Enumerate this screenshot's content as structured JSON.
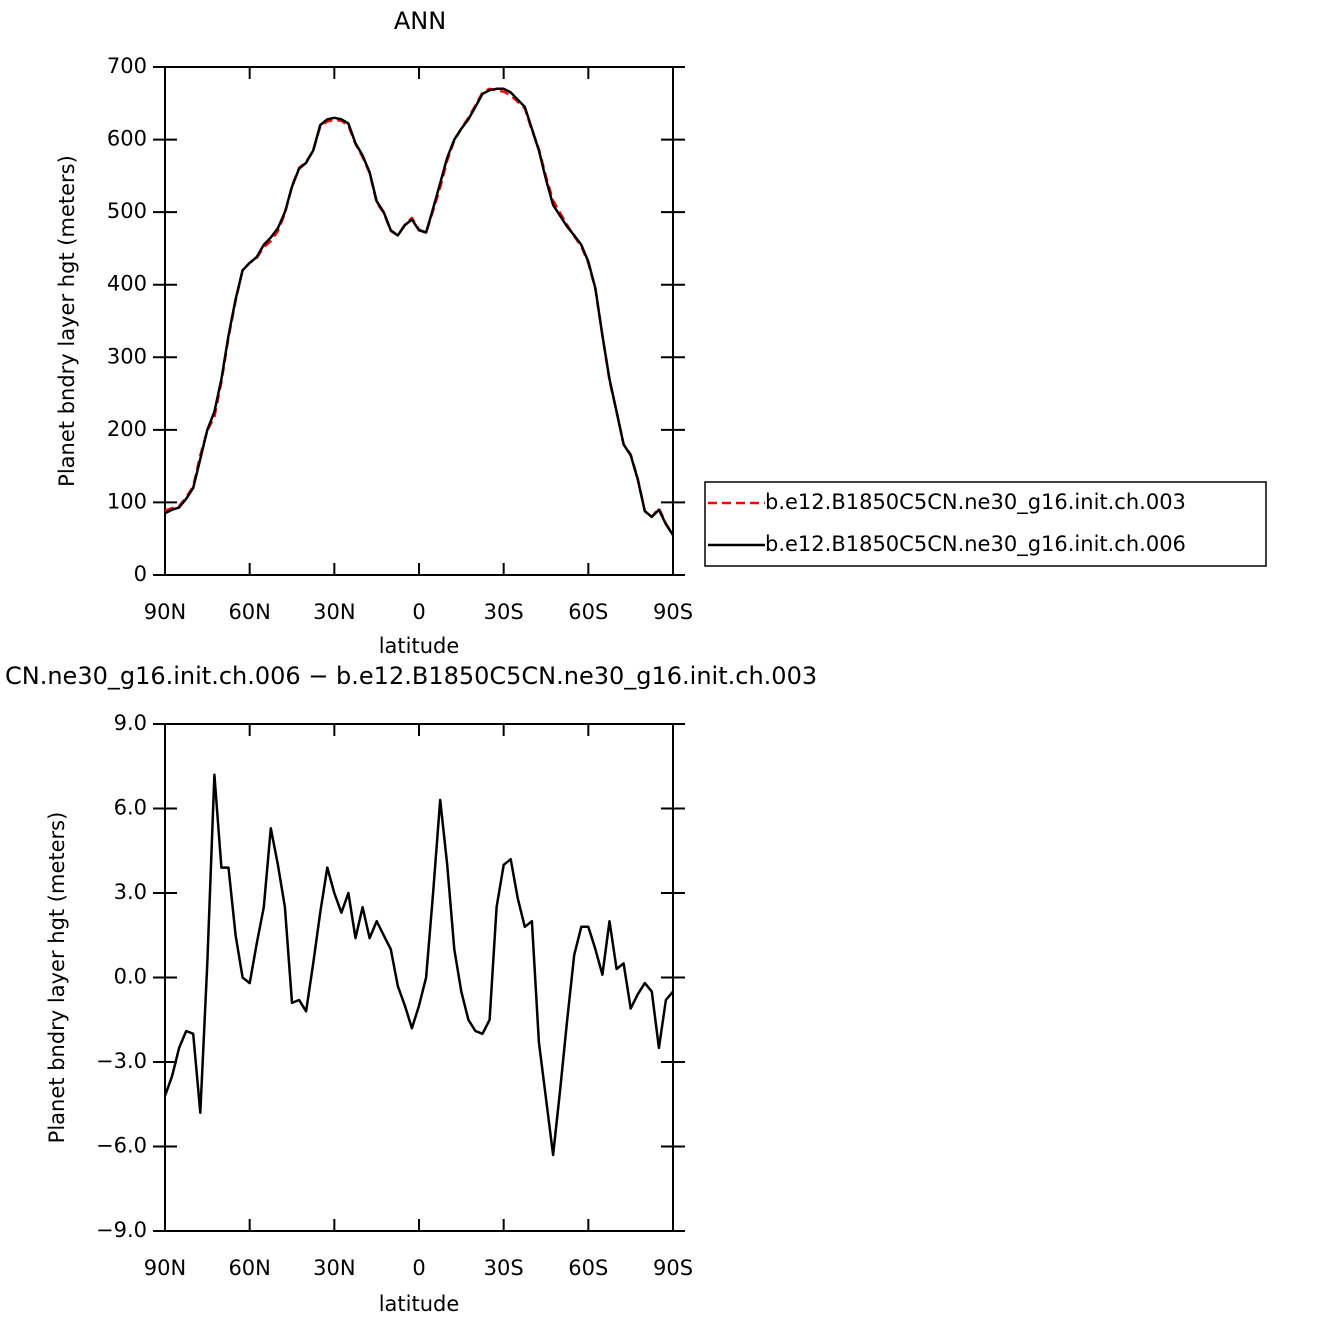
{
  "chart_data": [
    {
      "type": "line",
      "title": "ANN",
      "x_label": "latitude",
      "y_label": "Planet bndry layer hgt (meters)",
      "x": [
        90,
        87.5,
        85,
        82.5,
        80,
        77.5,
        75,
        72.5,
        70,
        67.5,
        65,
        62.5,
        60,
        57.5,
        55,
        52.5,
        50,
        47.5,
        45,
        42.5,
        40,
        37.5,
        35,
        32.5,
        30,
        27.5,
        25,
        22.5,
        20,
        17.5,
        15,
        12.5,
        10,
        7.5,
        5,
        2.5,
        0,
        -2.5,
        -5,
        -7.5,
        -10,
        -12.5,
        -15,
        -17.5,
        -20,
        -22.5,
        -25,
        -27.5,
        -30,
        -32.5,
        -35,
        -37.5,
        -40,
        -42.5,
        -45,
        -47.5,
        -50,
        -52.5,
        -55,
        -57.5,
        -60,
        -62.5,
        -65,
        -67.5,
        -70,
        -72.5,
        -75,
        -77.5,
        -80,
        -82.5,
        -85,
        -87.5,
        -90
      ],
      "xlim": [
        90,
        -90
      ],
      "xticks": [
        {
          "value": 90,
          "label": "90N"
        },
        {
          "value": 60,
          "label": "60N"
        },
        {
          "value": 30,
          "label": "30N"
        },
        0,
        {
          "value": -30,
          "label": "30S"
        },
        {
          "value": -60,
          "label": "60S"
        },
        {
          "value": -90,
          "label": "90S"
        }
      ],
      "ylim": [
        0,
        700
      ],
      "yticks": [
        0,
        100,
        200,
        300,
        400,
        500,
        600,
        700
      ],
      "legend": "right",
      "series": [
        {
          "name": "b.e12.B1850C5CN.ne30_g16.init.ch.003",
          "color": "#ff0000",
          "dash": true,
          "values": [
            89,
            92,
            95,
            107,
            122,
            165,
            199,
            218,
            266,
            327,
            378,
            420,
            430,
            437,
            452,
            460,
            474,
            498,
            536,
            561,
            569,
            585,
            618,
            625,
            627,
            626,
            619,
            594,
            576,
            554,
            513,
            499,
            474,
            468,
            483,
            492,
            476,
            472,
            502,
            534,
            571,
            599,
            615,
            630,
            647,
            665,
            670,
            668,
            666,
            661,
            652,
            643,
            613,
            587,
            549,
            516,
            499,
            482,
            467,
            453,
            430,
            394,
            330,
            268,
            225,
            180,
            166,
            133,
            88,
            80,
            92,
            71,
            55
          ]
        },
        {
          "name": "b.e12.B1850C5CN.ne30_g16.init.ch.006",
          "color": "#000000",
          "dash": false,
          "values": [
            85,
            90,
            93,
            105,
            120,
            160,
            200,
            225,
            270,
            330,
            380,
            420,
            430,
            438,
            455,
            465,
            478,
            500,
            535,
            560,
            568,
            585,
            620,
            628,
            630,
            628,
            622,
            595,
            578,
            555,
            515,
            500,
            475,
            468,
            482,
            490,
            475,
            472,
            505,
            540,
            575,
            600,
            615,
            628,
            645,
            663,
            668,
            670,
            670,
            665,
            655,
            645,
            615,
            585,
            545,
            510,
            495,
            480,
            468,
            455,
            432,
            395,
            330,
            270,
            225,
            180,
            165,
            132,
            88,
            80,
            90,
            70,
            55
          ]
        }
      ]
    },
    {
      "type": "line",
      "title": "CN.ne30_g16.init.ch.006 − b.e12.B1850C5CN.ne30_g16.init.ch.003",
      "x_label": "latitude",
      "y_label": "Planet bndry layer hgt (meters)",
      "x": [
        90,
        87.5,
        85,
        82.5,
        80,
        77.5,
        75,
        72.5,
        70,
        67.5,
        65,
        62.5,
        60,
        57.5,
        55,
        52.5,
        50,
        47.5,
        45,
        42.5,
        40,
        37.5,
        35,
        32.5,
        30,
        27.5,
        25,
        22.5,
        20,
        17.5,
        15,
        12.5,
        10,
        7.5,
        5,
        2.5,
        0,
        -2.5,
        -5,
        -7.5,
        -10,
        -12.5,
        -15,
        -17.5,
        -20,
        -22.5,
        -25,
        -27.5,
        -30,
        -32.5,
        -35,
        -37.5,
        -40,
        -42.5,
        -45,
        -47.5,
        -50,
        -52.5,
        -55,
        -57.5,
        -60,
        -62.5,
        -65,
        -67.5,
        -70,
        -72.5,
        -75,
        -77.5,
        -80,
        -82.5,
        -85,
        -87.5,
        -90
      ],
      "xlim": [
        90,
        -90
      ],
      "xticks": [
        {
          "value": 90,
          "label": "90N"
        },
        {
          "value": 60,
          "label": "60N"
        },
        {
          "value": 30,
          "label": "30N"
        },
        0,
        {
          "value": -30,
          "label": "30S"
        },
        {
          "value": -60,
          "label": "60S"
        },
        {
          "value": -90,
          "label": "90S"
        }
      ],
      "ylim": [
        -9,
        9
      ],
      "yticks": [
        {
          "value": -9,
          "label": "−9.0"
        },
        {
          "value": -6,
          "label": "−6.0"
        },
        {
          "value": -3,
          "label": "−3.0"
        },
        {
          "value": 0,
          "label": "0.0"
        },
        {
          "value": 3,
          "label": "3.0"
        },
        {
          "value": 6,
          "label": "6.0"
        },
        {
          "value": 9,
          "label": "9.0"
        }
      ],
      "series": [
        {
          "color": "#000000",
          "values": [
            -4.2,
            -3.5,
            -2.5,
            -1.9,
            -2.0,
            -4.8,
            0.5,
            7.2,
            3.9,
            3.9,
            1.5,
            0.0,
            -0.2,
            1.2,
            2.5,
            5.3,
            4.0,
            2.5,
            -0.9,
            -0.8,
            -1.2,
            0.5,
            2.3,
            3.9,
            3.0,
            2.3,
            3.0,
            1.4,
            2.5,
            1.4,
            2.0,
            1.5,
            1.0,
            -0.3,
            -1.0,
            -1.8,
            -1.0,
            0.0,
            3.0,
            6.3,
            4.0,
            1.0,
            -0.5,
            -1.5,
            -1.9,
            -2.0,
            -1.5,
            2.5,
            4.0,
            4.2,
            2.8,
            1.8,
            2.0,
            -2.3,
            -4.3,
            -6.3,
            -4.0,
            -1.5,
            0.8,
            1.8,
            1.8,
            1.0,
            0.1,
            2.0,
            0.3,
            0.5,
            -1.1,
            -0.6,
            -0.2,
            -0.5,
            -2.5,
            -0.8,
            -0.5
          ]
        }
      ]
    }
  ]
}
